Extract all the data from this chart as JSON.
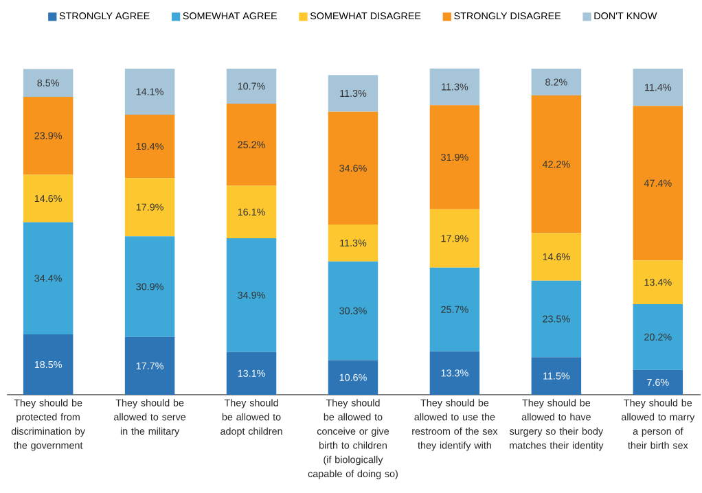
{
  "chart_data": {
    "type": "bar",
    "stacked": true,
    "legend": "top",
    "categories": [
      "They should be protected from discrimination by the government",
      "They should be allowed to serve in the military",
      "They should be allowed to adopt children",
      "They should be allowed to conceive or give birth to children (if biologically capable of doing so)",
      "They should be allowed to use the restroom of the sex they identify with",
      "They should be allowed to have surgery so their body matches their identity",
      "They should be allowed to marry a person of their birth sex"
    ],
    "series": [
      {
        "name": "STRONGLY AGREE",
        "color": "#2e75b6",
        "values": [
          18.5,
          17.7,
          13.1,
          10.6,
          13.3,
          11.5,
          7.6
        ],
        "value_labels": [
          "18.5%",
          "17.7%",
          "13.1%",
          "10.6%",
          "13.3%",
          "11.5%",
          "7.6%"
        ]
      },
      {
        "name": "SOMEWHAT AGREE",
        "color": "#3ea8d8",
        "values": [
          34.4,
          30.9,
          34.9,
          30.3,
          25.7,
          23.5,
          20.2
        ],
        "value_labels": [
          "34.4%",
          "30.9%",
          "34.9%",
          "30.3%",
          "25.7%",
          "23.5%",
          "20.2%"
        ]
      },
      {
        "name": "SOMEWHAT DISAGREE",
        "color": "#fdc82f",
        "values": [
          14.6,
          17.9,
          16.1,
          11.3,
          17.9,
          14.6,
          13.4
        ],
        "value_labels": [
          "14.6%",
          "17.9%",
          "16.1%",
          "11.3%",
          "17.9%",
          "14.6%",
          "13.4%"
        ]
      },
      {
        "name": "STRONGLY DISAGREE",
        "color": "#f7941d",
        "values": [
          23.9,
          19.4,
          25.2,
          34.6,
          31.9,
          42.2,
          47.4
        ],
        "value_labels": [
          "23.9%",
          "19.4%",
          "25.2%",
          "34.6%",
          "31.9%",
          "42.2%",
          "47.4%"
        ]
      },
      {
        "name": "DON'T KNOW",
        "color": "#a7c5d9",
        "values": [
          8.5,
          14.1,
          10.7,
          11.3,
          11.3,
          8.2,
          11.4
        ],
        "value_labels": [
          "8.5%",
          "14.1%",
          "10.7%",
          "11.3%",
          "11.3%",
          "8.2%",
          "11.4%"
        ]
      }
    ]
  }
}
